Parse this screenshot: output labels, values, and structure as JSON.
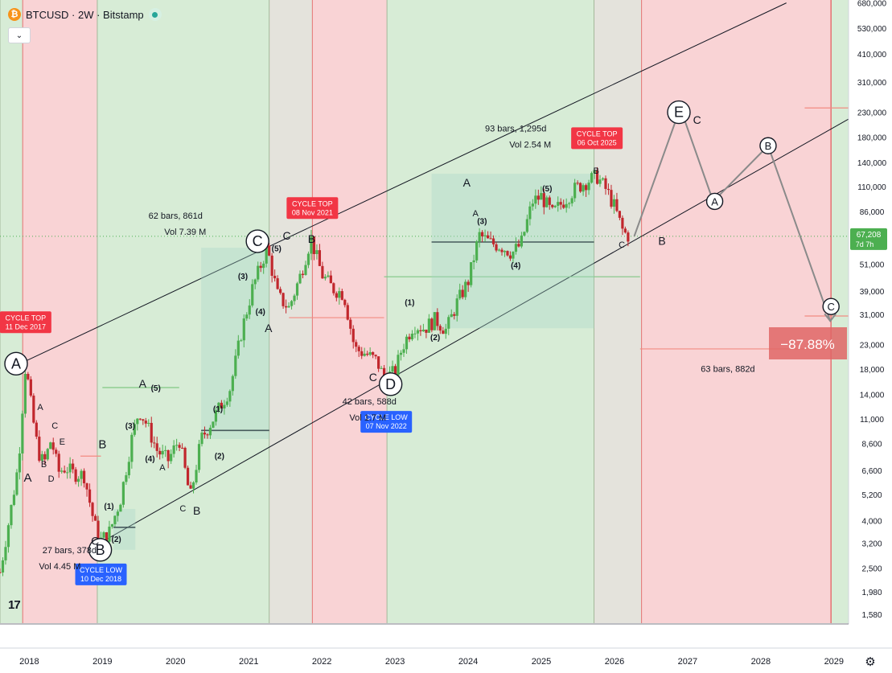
{
  "header": {
    "title": "BTCUSD · 2W · Bitstamp",
    "logo_glyph": "₿",
    "collapse_glyph": "⌄",
    "tv_logo": "17"
  },
  "price_axis": {
    "labels": [
      "680,000",
      "530,000",
      "410,000",
      "310,000",
      "230,000",
      "180,000",
      "140,000",
      "110,000",
      "86,000",
      "67,208",
      "51,000",
      "39,000",
      "31,000",
      "23,000",
      "18,000",
      "14,000",
      "11,000",
      "8,600",
      "6,600",
      "5,200",
      "4,000",
      "3,200",
      "2,500",
      "1,980",
      "1,580"
    ],
    "current_price": "67,208",
    "countdown": "7d 7h"
  },
  "time_axis": {
    "labels": [
      "2018",
      "2019",
      "2020",
      "2021",
      "2022",
      "2023",
      "2024",
      "2025",
      "2026",
      "2027",
      "2028",
      "2029"
    ]
  },
  "callouts": [
    {
      "line1": "CYCLE TOP",
      "line2": "11 Dec 2017",
      "color": "#f23645"
    },
    {
      "line1": "CYCLE TOP",
      "line2": "08 Nov 2021",
      "color": "#f23645"
    },
    {
      "line1": "CYCLE TOP",
      "line2": "06 Oct 2025",
      "color": "#f23645"
    },
    {
      "line1": "CYCLE LOW",
      "line2": "10 Dec 2018",
      "color": "#2962ff"
    },
    {
      "line1": "CYCLE LOW",
      "line2": "07 Nov 2022",
      "color": "#2962ff"
    }
  ],
  "measurements": [
    {
      "bars": "62 bars, 861d",
      "vol": "Vol 7.39 M"
    },
    {
      "bars": "93 bars, 1,295d",
      "vol": "Vol 2.54 M"
    },
    {
      "bars": "42 bars, 588d",
      "vol": "Vol 1.7 M"
    },
    {
      "bars": "27 bars, 378d",
      "vol": "Vol 4.45 M"
    },
    {
      "bars": "63 bars, 882d",
      "vol": ""
    }
  ],
  "percent_box": "−87.88%",
  "wave_labels": {
    "circled": [
      "A",
      "B",
      "C",
      "D",
      "E",
      "A",
      "B",
      "C"
    ],
    "plain": [
      "A",
      "B",
      "C",
      "D",
      "E",
      "A",
      "B",
      "C",
      "A",
      "B",
      "C",
      "A",
      "B",
      "C",
      "A",
      "C",
      "B",
      "C",
      "A",
      "B",
      "C"
    ],
    "numbered": [
      "(1)",
      "(2)",
      "(3)",
      "(4)",
      "(5)"
    ]
  },
  "colors": {
    "bull_zone": "#d7ecd6",
    "bear_zone": "#f9d3d5",
    "neutral_zone": "#e4e3dc",
    "candle_up": "#4caf50",
    "candle_down": "#c1272d",
    "accent_red": "#f23645",
    "accent_blue": "#2962ff",
    "price_tag": "#4caf50"
  },
  "chart_data": {
    "type": "candlestick",
    "title": "BTCUSD · 2W · Bitstamp",
    "xlabel": "",
    "ylabel": "",
    "x_range": [
      2017.6,
      2029.2
    ],
    "y_range": [
      1450,
      700000
    ],
    "y_scale": "log",
    "grid": false,
    "price_path": [
      {
        "t": 2017.6,
        "p": 2400
      },
      {
        "t": 2017.75,
        "p": 4500
      },
      {
        "t": 2017.85,
        "p": 7000
      },
      {
        "t": 2017.95,
        "p": 19000
      },
      {
        "t": 2018.05,
        "p": 11000
      },
      {
        "t": 2018.12,
        "p": 8000
      },
      {
        "t": 2018.2,
        "p": 7000
      },
      {
        "t": 2018.3,
        "p": 9000
      },
      {
        "t": 2018.4,
        "p": 6500
      },
      {
        "t": 2018.5,
        "p": 6800
      },
      {
        "t": 2018.6,
        "p": 6400
      },
      {
        "t": 2018.75,
        "p": 6300
      },
      {
        "t": 2018.88,
        "p": 4000
      },
      {
        "t": 2018.96,
        "p": 3250
      },
      {
        "t": 2019.1,
        "p": 3600
      },
      {
        "t": 2019.25,
        "p": 5000
      },
      {
        "t": 2019.4,
        "p": 9000
      },
      {
        "t": 2019.5,
        "p": 12000
      },
      {
        "t": 2019.6,
        "p": 10500
      },
      {
        "t": 2019.75,
        "p": 8000
      },
      {
        "t": 2019.9,
        "p": 7300
      },
      {
        "t": 2020.05,
        "p": 9000
      },
      {
        "t": 2020.2,
        "p": 5000
      },
      {
        "t": 2020.35,
        "p": 9000
      },
      {
        "t": 2020.55,
        "p": 11500
      },
      {
        "t": 2020.75,
        "p": 15000
      },
      {
        "t": 2020.9,
        "p": 26000
      },
      {
        "t": 2021.05,
        "p": 40000
      },
      {
        "t": 2021.25,
        "p": 60000
      },
      {
        "t": 2021.4,
        "p": 37000
      },
      {
        "t": 2021.55,
        "p": 33000
      },
      {
        "t": 2021.7,
        "p": 45000
      },
      {
        "t": 2021.85,
        "p": 66000
      },
      {
        "t": 2022.0,
        "p": 46000
      },
      {
        "t": 2022.15,
        "p": 40000
      },
      {
        "t": 2022.3,
        "p": 38000
      },
      {
        "t": 2022.45,
        "p": 22000
      },
      {
        "t": 2022.6,
        "p": 21000
      },
      {
        "t": 2022.75,
        "p": 19500
      },
      {
        "t": 2022.85,
        "p": 16500
      },
      {
        "t": 2023.0,
        "p": 17500
      },
      {
        "t": 2023.1,
        "p": 22500
      },
      {
        "t": 2023.25,
        "p": 28000
      },
      {
        "t": 2023.4,
        "p": 27000
      },
      {
        "t": 2023.55,
        "p": 29500
      },
      {
        "t": 2023.7,
        "p": 26500
      },
      {
        "t": 2023.85,
        "p": 35000
      },
      {
        "t": 2024.0,
        "p": 43000
      },
      {
        "t": 2024.15,
        "p": 68000
      },
      {
        "t": 2024.3,
        "p": 63000
      },
      {
        "t": 2024.45,
        "p": 61000
      },
      {
        "t": 2024.6,
        "p": 57000
      },
      {
        "t": 2024.72,
        "p": 62000
      },
      {
        "t": 2024.88,
        "p": 95000
      },
      {
        "t": 2025.0,
        "p": 100000
      },
      {
        "t": 2025.15,
        "p": 84000
      },
      {
        "t": 2025.3,
        "p": 95000
      },
      {
        "t": 2025.45,
        "p": 107000
      },
      {
        "t": 2025.6,
        "p": 115000
      },
      {
        "t": 2025.76,
        "p": 122000
      },
      {
        "t": 2025.9,
        "p": 105000
      },
      {
        "t": 2026.0,
        "p": 90000
      },
      {
        "t": 2026.12,
        "p": 70000
      },
      {
        "t": 2026.2,
        "p": 67208
      }
    ],
    "projection_path": [
      {
        "t": 2026.27,
        "p": 67208
      },
      {
        "t": 2026.9,
        "p": 240000
      },
      {
        "t": 2027.35,
        "p": 95000
      },
      {
        "t": 2028.1,
        "p": 165000
      },
      {
        "t": 2028.95,
        "p": 29000
      }
    ],
    "zones": [
      {
        "from": 2017.6,
        "to": 2017.91,
        "kind": "bull"
      },
      {
        "from": 2017.91,
        "to": 2018.93,
        "kind": "bear"
      },
      {
        "from": 2018.93,
        "to": 2021.28,
        "kind": "bull"
      },
      {
        "from": 2021.28,
        "to": 2021.87,
        "kind": "neutral"
      },
      {
        "from": 2021.87,
        "to": 2022.89,
        "kind": "bear"
      },
      {
        "from": 2022.89,
        "to": 2025.72,
        "kind": "bull"
      },
      {
        "from": 2025.72,
        "to": 2026.37,
        "kind": "neutral"
      },
      {
        "from": 2026.37,
        "to": 2028.96,
        "kind": "bear"
      },
      {
        "from": 2028.96,
        "to": 2029.2,
        "kind": "bull"
      }
    ],
    "channel_lines": [
      {
        "from": {
          "t": 2017.95,
          "p": 19500
        },
        "to": {
          "t": 2028.35,
          "p": 680000
        }
      },
      {
        "from": {
          "t": 2018.96,
          "p": 3200
        },
        "to": {
          "t": 2029.2,
          "p": 215000
        }
      }
    ]
  }
}
